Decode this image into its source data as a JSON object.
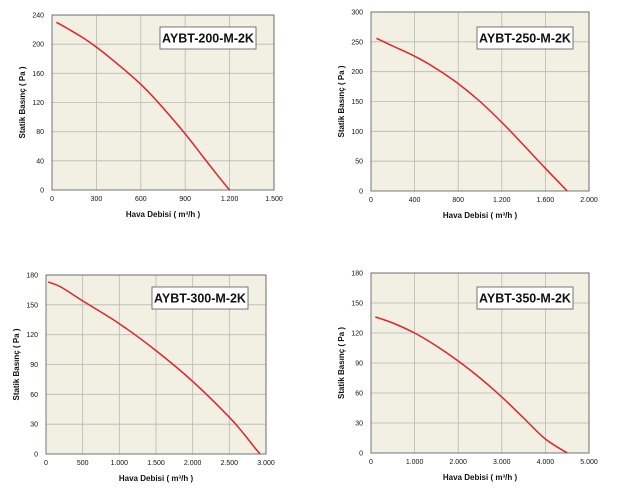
{
  "chart_data": [
    {
      "type": "line",
      "title": "AYBT-200-M-2K",
      "xlabel": "Hava Debisi ( m³/h )",
      "ylabel": "Statik Basınç ( Pa )",
      "xlim": [
        0,
        1500
      ],
      "ylim": [
        0,
        240
      ],
      "xticks": [
        0,
        300,
        600,
        900,
        1200,
        1500
      ],
      "xtick_labels": [
        "0",
        "300",
        "600",
        "900",
        "1.200",
        "1.500"
      ],
      "yticks": [
        0,
        40,
        80,
        120,
        160,
        200,
        240
      ],
      "ytick_labels": [
        "0",
        "40",
        "80",
        "120",
        "160",
        "200",
        "240"
      ],
      "grid": true,
      "series": [
        {
          "x": [
            30,
            100,
            200,
            300,
            400,
            500,
            600,
            700,
            800,
            900,
            1000,
            1100,
            1200
          ],
          "y": [
            230,
            222,
            210,
            196,
            180,
            163,
            145,
            124,
            101,
            77,
            51,
            25,
            0
          ]
        }
      ]
    },
    {
      "type": "line",
      "title": "AYBT-250-M-2K",
      "xlabel": "Hava Debisi ( m³/h )",
      "ylabel": "Statik Basınç ( Pa )",
      "xlim": [
        0,
        2000
      ],
      "ylim": [
        0,
        300
      ],
      "xticks": [
        0,
        400,
        800,
        1200,
        1600,
        2000
      ],
      "xtick_labels": [
        "0",
        "400",
        "800",
        "1.200",
        "1.600",
        "2.000"
      ],
      "yticks": [
        0,
        50,
        100,
        150,
        200,
        250,
        300
      ],
      "ytick_labels": [
        "0",
        "50",
        "100",
        "150",
        "200",
        "250",
        "300"
      ],
      "grid": true,
      "series": [
        {
          "x": [
            50,
            200,
            400,
            600,
            800,
            1000,
            1200,
            1400,
            1600,
            1800
          ],
          "y": [
            256,
            243,
            226,
            205,
            180,
            150,
            115,
            77,
            38,
            0
          ]
        }
      ]
    },
    {
      "type": "line",
      "title": "AYBT-300-M-2K",
      "xlabel": "Hava Debisi ( m³/h )",
      "ylabel": "Statik Basınç ( Pa )",
      "xlim": [
        0,
        3000
      ],
      "ylim": [
        0,
        180
      ],
      "xticks": [
        0,
        500,
        1000,
        1500,
        2000,
        2500,
        3000
      ],
      "xtick_labels": [
        "0",
        "500",
        "1.000",
        "1.500",
        "2.000",
        "2.500",
        "3.000"
      ],
      "yticks": [
        0,
        30,
        60,
        90,
        120,
        150,
        180
      ],
      "ytick_labels": [
        "0",
        "30",
        "60",
        "90",
        "120",
        "150",
        "180"
      ],
      "grid": true,
      "series": [
        {
          "x": [
            30,
            200,
            500,
            1000,
            1500,
            2000,
            2500,
            2700,
            2850,
            2920
          ],
          "y": [
            173,
            168,
            154,
            131,
            104,
            73,
            37,
            20,
            6,
            0
          ]
        }
      ]
    },
    {
      "type": "line",
      "title": "AYBT-350-M-2K",
      "xlabel": "Hava Debisi ( m³/h )",
      "ylabel": "Statik Basınç ( Pa )",
      "xlim": [
        0,
        5000
      ],
      "ylim": [
        0,
        180
      ],
      "xticks": [
        0,
        1000,
        2000,
        3000,
        4000,
        5000
      ],
      "xtick_labels": [
        "0",
        "1.000",
        "2.000",
        "3.000",
        "4.000",
        "5.000"
      ],
      "yticks": [
        0,
        30,
        60,
        90,
        120,
        150,
        180
      ],
      "ytick_labels": [
        "0",
        "30",
        "60",
        "90",
        "120",
        "150",
        "180"
      ],
      "grid": true,
      "series": [
        {
          "x": [
            100,
            500,
            1000,
            1500,
            2000,
            2500,
            3000,
            3500,
            4000,
            4500
          ],
          "y": [
            136,
            130,
            120,
            107,
            92,
            75,
            56,
            35,
            14,
            0
          ]
        }
      ]
    }
  ]
}
